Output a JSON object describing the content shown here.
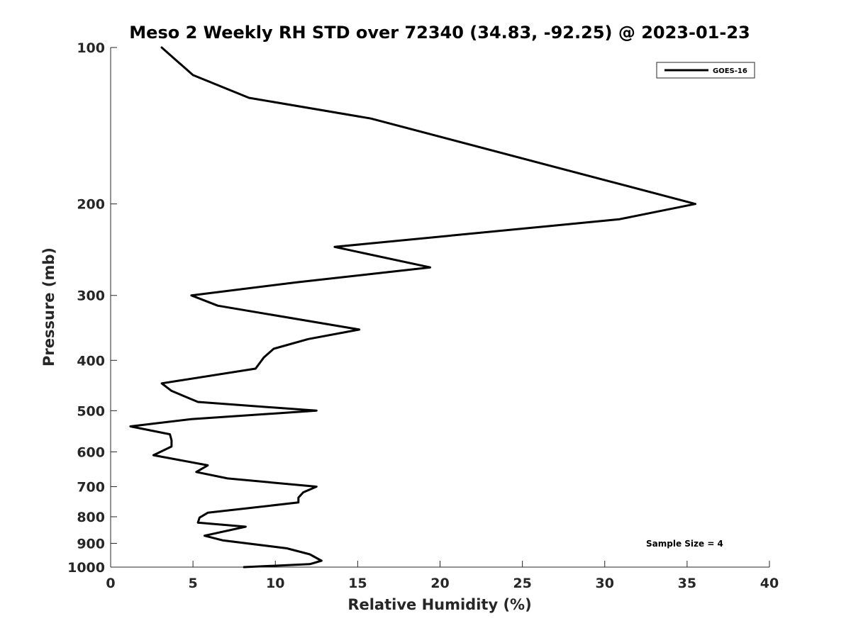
{
  "chart_data": {
    "type": "line",
    "title": "Meso 2 Weekly RH STD over 72340 (34.83, -92.25) @ 2023-01-23",
    "xlabel": "Relative Humidity (%)",
    "ylabel": "Pressure (mb)",
    "xlim": [
      0,
      40
    ],
    "ylim": [
      100,
      1000
    ],
    "y_scale": "log",
    "y_reversed": true,
    "x_ticks": [
      0,
      5,
      10,
      15,
      20,
      25,
      30,
      35,
      40
    ],
    "y_ticks": [
      100,
      200,
      300,
      400,
      500,
      600,
      700,
      800,
      900,
      1000
    ],
    "grid": false,
    "legend_position": "top-right",
    "annotation": "Sample Size = 4",
    "series": [
      {
        "name": "GOES-16",
        "color": "#000000",
        "x": [
          3.1,
          5.0,
          8.4,
          15.8,
          35.5,
          30.9,
          13.6,
          19.4,
          11.3,
          4.9,
          6.5,
          15.1,
          12.0,
          9.9,
          9.3,
          8.8,
          3.1,
          3.7,
          5.3,
          12.5,
          4.9,
          1.2,
          3.6,
          3.7,
          3.7,
          2.6,
          5.9,
          5.2,
          7.1,
          12.5,
          11.7,
          11.4,
          11.4,
          5.9,
          5.4,
          5.3,
          8.2,
          5.7,
          6.8,
          10.7,
          12.1,
          12.8,
          12.1,
          8.1
        ],
        "y": [
          100,
          113,
          125,
          137,
          200,
          214,
          242,
          265,
          283,
          300,
          314,
          349,
          364,
          380,
          395,
          415,
          443,
          458,
          481,
          500,
          519,
          536,
          555,
          570,
          586,
          609,
          637,
          656,
          675,
          700,
          718,
          735,
          751,
          786,
          803,
          821,
          836,
          870,
          888,
          920,
          945,
          972,
          987,
          1000
        ]
      }
    ]
  }
}
